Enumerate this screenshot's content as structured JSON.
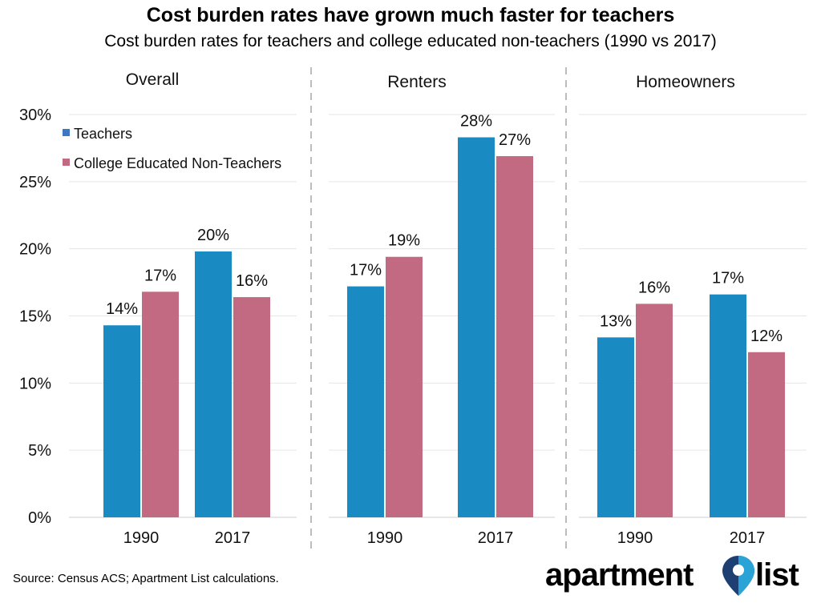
{
  "title": "Cost burden rates have grown much faster for teachers",
  "subtitle": "Cost burden rates for teachers and college educated non-teachers (1990 vs 2017)",
  "source": "Source: Census ACS; Apartment List calculations.",
  "logo": {
    "word1": "apartment",
    "word2": "list"
  },
  "colors": {
    "teachers": "#1a8bc2",
    "non_teachers": "#c26a81",
    "legend_teachers": "#3e78c1",
    "pin_dark": "#1d3f72",
    "pin_light": "#2aa3d6"
  },
  "chart_data": {
    "type": "bar",
    "ylim": [
      0,
      30
    ],
    "yticks": [
      "0%",
      "5%",
      "10%",
      "15%",
      "20%",
      "25%",
      "30%"
    ],
    "ytick_values": [
      0,
      5,
      10,
      15,
      20,
      25,
      30
    ],
    "legend": [
      "Teachers",
      "College Educated Non-Teachers"
    ],
    "legend_placement": "top-left",
    "grid": true,
    "panels": [
      {
        "title": "Overall",
        "categories": [
          "1990",
          "2017"
        ],
        "series": [
          {
            "name": "Teachers",
            "values": [
              14.3,
              19.8
            ],
            "labels": [
              "14%",
              "20%"
            ]
          },
          {
            "name": "College Educated Non-Teachers",
            "values": [
              16.8,
              16.4
            ],
            "labels": [
              "17%",
              "16%"
            ]
          }
        ]
      },
      {
        "title": "Renters",
        "categories": [
          "1990",
          "2017"
        ],
        "series": [
          {
            "name": "Teachers",
            "values": [
              17.2,
              28.3
            ],
            "labels": [
              "17%",
              "28%"
            ]
          },
          {
            "name": "College Educated Non-Teachers",
            "values": [
              19.4,
              26.9
            ],
            "labels": [
              "19%",
              "27%"
            ]
          }
        ]
      },
      {
        "title": "Homeowners",
        "categories": [
          "1990",
          "2017"
        ],
        "series": [
          {
            "name": "Teachers",
            "values": [
              13.4,
              16.6
            ],
            "labels": [
              "13%",
              "17%"
            ]
          },
          {
            "name": "College Educated Non-Teachers",
            "values": [
              15.9,
              12.3
            ],
            "labels": [
              "16%",
              "12%"
            ]
          }
        ]
      }
    ]
  }
}
